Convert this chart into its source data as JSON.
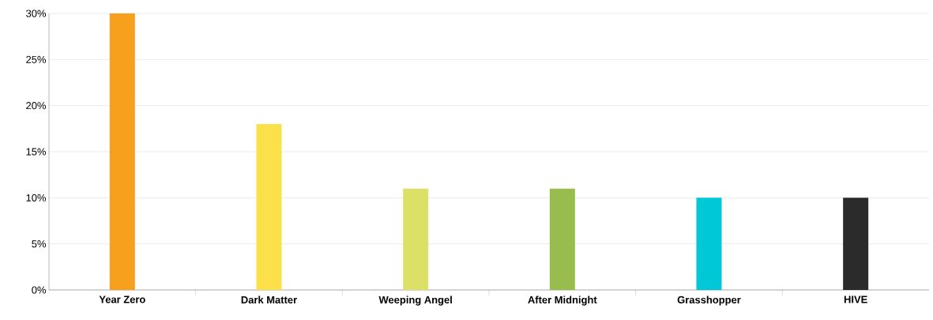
{
  "chart_data": {
    "type": "bar",
    "categories": [
      "Year Zero",
      "Dark Matter",
      "Weeping Angel",
      "After Midnight",
      "Grasshopper",
      "HIVE"
    ],
    "values": [
      30,
      18,
      11,
      11,
      10,
      10
    ],
    "colors": [
      "#f7a01e",
      "#fbe04a",
      "#dce066",
      "#98bd4e",
      "#00c8d7",
      "#2b2b2b"
    ],
    "ylim": [
      0,
      30
    ],
    "yticks": [
      {
        "value": 0,
        "label": "0%"
      },
      {
        "value": 5,
        "label": "5%"
      },
      {
        "value": 10,
        "label": "10%"
      },
      {
        "value": 15,
        "label": "15%"
      },
      {
        "value": 20,
        "label": "20%"
      },
      {
        "value": 25,
        "label": "25%"
      },
      {
        "value": 30,
        "label": "30%"
      }
    ],
    "grid": "y"
  }
}
